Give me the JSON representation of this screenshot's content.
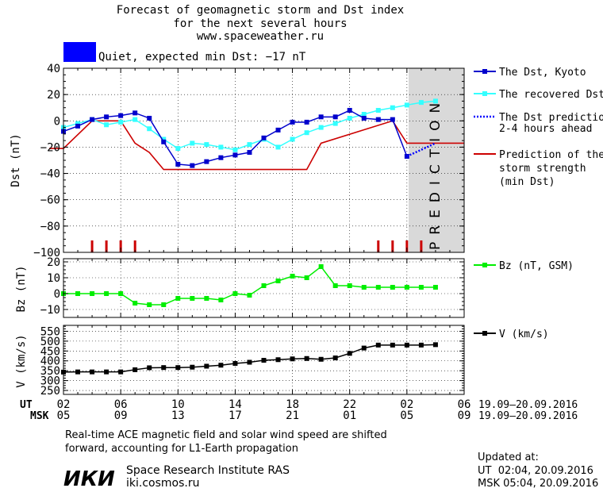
{
  "header": {
    "title_line1": "Forecast of geomagnetic storm and Dst index",
    "title_line2": "for the next several hours",
    "site": "www.spaceweather.ru",
    "status": "Quiet, expected min Dst: −17 nT",
    "status_color": "#0000ff"
  },
  "colors": {
    "dst_kyoto": "#0000cc",
    "dst_recovered": "#33ffff",
    "dst_prediction": "#0000ff",
    "storm_strength": "#cc0000",
    "bz": "#00ee00",
    "v": "#000000",
    "prediction_band": "#d9d9d9"
  },
  "prediction_label": "PREDICTION",
  "time_axis": {
    "ut_label": "UT",
    "msk_label": "MSK",
    "ut_ticks": [
      "02",
      "06",
      "10",
      "14",
      "18",
      "22",
      "02",
      "06"
    ],
    "msk_ticks": [
      "05",
      "09",
      "13",
      "17",
      "21",
      "01",
      "05",
      "09"
    ],
    "ut_range": "19.09–20.09.2016",
    "msk_range": "19.09–20.09.2016"
  },
  "chart_data": [
    {
      "type": "line",
      "xlabel": "",
      "ylabel": "Dst (nT)",
      "xlim": [
        0,
        28
      ],
      "ylim": [
        -100,
        40
      ],
      "yticks": [
        40,
        20,
        0,
        -20,
        -40,
        -60,
        -80,
        -100
      ],
      "series": [
        {
          "name": "The Dst, Kyoto",
          "x": [
            0,
            1,
            2,
            3,
            4,
            5,
            6,
            7,
            8,
            9,
            10,
            11,
            12,
            13,
            14,
            15,
            16,
            17,
            18,
            19,
            20,
            21,
            22,
            23,
            24
          ],
          "y": [
            -8,
            -4,
            1,
            3,
            4,
            6,
            2,
            -16,
            -33,
            -34,
            -31,
            -28,
            -26,
            -24,
            -13,
            -7,
            -1,
            -1,
            3,
            3,
            8,
            2,
            1,
            1,
            -27
          ]
        },
        {
          "name": "The recovered Dst",
          "x": [
            0,
            1,
            2,
            3,
            4,
            5,
            6,
            7,
            8,
            9,
            10,
            11,
            12,
            13,
            14,
            15,
            16,
            17,
            18,
            19,
            20,
            21,
            22,
            23,
            24,
            25,
            26
          ],
          "y": [
            -5,
            -2,
            1,
            -3,
            -1,
            1,
            -6,
            -14,
            -21,
            -17,
            -18,
            -20,
            -22,
            -18,
            -14,
            -20,
            -14,
            -9,
            -5,
            -2,
            2,
            5,
            8,
            10,
            12,
            14,
            15
          ]
        },
        {
          "name": "The Dst prediction 2–4 hours ahead",
          "x": [
            24,
            26
          ],
          "y": [
            -27,
            -17
          ]
        },
        {
          "name": "Prediction of the storm strength (min Dst)",
          "x": [
            -1,
            0,
            2,
            4,
            5,
            6,
            7,
            14,
            17,
            18,
            23,
            24,
            26,
            28
          ],
          "y": [
            -21,
            -21,
            0,
            0,
            -17,
            -24,
            -37,
            -37,
            -37,
            -17,
            0,
            -17,
            -17,
            -17
          ]
        }
      ],
      "storm_ticks_x": [
        2,
        3,
        4,
        5,
        22,
        23,
        24,
        25
      ]
    },
    {
      "type": "line",
      "ylabel": "Bz (nT)",
      "ylim": [
        -15,
        22
      ],
      "yticks": [
        20,
        10,
        0,
        -10
      ],
      "series": [
        {
          "name": "Bz (nT, GSM)",
          "x": [
            0,
            1,
            2,
            3,
            4,
            5,
            6,
            7,
            8,
            9,
            10,
            11,
            12,
            13,
            14,
            15,
            16,
            17,
            18,
            19,
            20,
            21,
            22,
            23,
            24,
            25,
            26
          ],
          "y": [
            0,
            0,
            0,
            0,
            0,
            -6,
            -7,
            -7,
            -3,
            -3,
            -3,
            -4,
            0,
            -1,
            5,
            8,
            11,
            10,
            17,
            5,
            5,
            4,
            4,
            4,
            4,
            4,
            4
          ]
        }
      ]
    },
    {
      "type": "line",
      "ylabel": "V (km/s)",
      "ylim": [
        230,
        580
      ],
      "yticks": [
        550,
        500,
        450,
        400,
        350,
        300,
        250
      ],
      "series": [
        {
          "name": "V (km/s)",
          "x": [
            0,
            1,
            2,
            3,
            4,
            5,
            6,
            7,
            8,
            9,
            10,
            11,
            12,
            13,
            14,
            15,
            16,
            17,
            18,
            19,
            20,
            21,
            22,
            23,
            24,
            25,
            26
          ],
          "y": [
            343,
            344,
            344,
            344,
            344,
            355,
            365,
            366,
            366,
            368,
            373,
            378,
            387,
            393,
            403,
            406,
            410,
            412,
            408,
            415,
            438,
            465,
            480,
            480,
            480,
            480,
            482
          ]
        }
      ]
    }
  ],
  "legend": {
    "dst_kyoto": "The Dst, Kyoto",
    "dst_recovered": "The recovered Dst",
    "dst_pred_1": "The Dst prediction",
    "dst_pred_2": "2-4 hours ahead",
    "storm_1": "Prediction of the",
    "storm_2": "storm strength",
    "storm_3": "(min Dst)",
    "bz": "Bz (nT, GSM)",
    "v": "V (km/s)"
  },
  "footer": {
    "note_line1": "Real-time ACE magnetic field and solar wind speed are shifted",
    "note_line2": "forward, accounting for L1-Earth propagation",
    "logo_text": "ИКИ",
    "institute": "Space Research Institute RAS",
    "institute_url": "iki.cosmos.ru",
    "updated_label": "Updated at:",
    "updated_ut": "UT  02:04, 20.09.2016",
    "updated_msk": "MSK 05:04, 20.09.2016"
  }
}
